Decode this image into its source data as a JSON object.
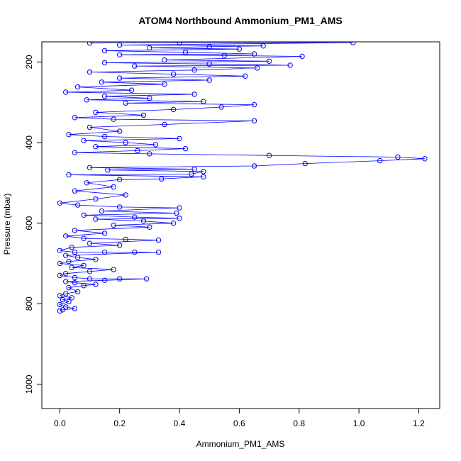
{
  "chart_data": {
    "type": "scatter",
    "title": "ATOM4 Northbound Ammonium_PM1_AMS",
    "xlabel": "Ammonium_PM1_AMS",
    "ylabel": "Pressure (mbar)",
    "xlim": [
      -0.06,
      1.27
    ],
    "ylim": [
      1060,
      150
    ],
    "y_reversed": true,
    "x_ticks": [
      0.0,
      0.2,
      0.4,
      0.6,
      0.8,
      1.0,
      1.2
    ],
    "x_tick_labels": [
      "0.0",
      "0.2",
      "0.4",
      "0.6",
      "0.8",
      "1.0",
      "1.2"
    ],
    "y_ticks": [
      200,
      400,
      600,
      800,
      1000
    ],
    "y_tick_labels": [
      "200",
      "400",
      "600",
      "800",
      "1000"
    ],
    "grid": false,
    "legend": "none",
    "connected": true,
    "series": [
      {
        "color": "#0000ff",
        "marker": "open-circle",
        "points": [
          [
            0.0,
            818
          ],
          [
            0.01,
            815
          ],
          [
            0.05,
            812
          ],
          [
            0.02,
            808
          ],
          [
            0.0,
            802
          ],
          [
            0.03,
            795
          ],
          [
            0.01,
            790
          ],
          [
            0.04,
            785
          ],
          [
            0.0,
            780
          ],
          [
            0.02,
            775
          ],
          [
            0.06,
            770
          ],
          [
            0.03,
            760
          ],
          [
            0.08,
            755
          ],
          [
            0.12,
            752
          ],
          [
            0.05,
            748
          ],
          [
            0.02,
            745
          ],
          [
            0.15,
            742
          ],
          [
            0.29,
            738
          ],
          [
            0.2,
            738
          ],
          [
            0.1,
            738
          ],
          [
            0.05,
            735
          ],
          [
            0.0,
            730
          ],
          [
            0.02,
            725
          ],
          [
            0.1,
            720
          ],
          [
            0.18,
            715
          ],
          [
            0.04,
            710
          ],
          [
            0.08,
            705
          ],
          [
            0.0,
            700
          ],
          [
            0.03,
            695
          ],
          [
            0.12,
            690
          ],
          [
            0.06,
            685
          ],
          [
            0.02,
            680
          ],
          [
            0.33,
            672
          ],
          [
            0.25,
            672
          ],
          [
            0.15,
            672
          ],
          [
            0.05,
            672
          ],
          [
            0.0,
            668
          ],
          [
            0.04,
            660
          ],
          [
            0.2,
            655
          ],
          [
            0.1,
            650
          ],
          [
            0.33,
            642
          ],
          [
            0.22,
            640
          ],
          [
            0.08,
            638
          ],
          [
            0.02,
            632
          ],
          [
            0.15,
            625
          ],
          [
            0.05,
            618
          ],
          [
            0.3,
            610
          ],
          [
            0.18,
            605
          ],
          [
            0.38,
            600
          ],
          [
            0.28,
            595
          ],
          [
            0.12,
            590
          ],
          [
            0.4,
            588
          ],
          [
            0.25,
            585
          ],
          [
            0.08,
            580
          ],
          [
            0.39,
            575
          ],
          [
            0.14,
            570
          ],
          [
            0.4,
            562
          ],
          [
            0.2,
            560
          ],
          [
            0.06,
            555
          ],
          [
            0.0,
            550
          ],
          [
            0.12,
            540
          ],
          [
            0.22,
            530
          ],
          [
            0.05,
            520
          ],
          [
            0.18,
            510
          ],
          [
            0.09,
            500
          ],
          [
            0.2,
            492
          ],
          [
            0.34,
            490
          ],
          [
            0.48,
            485
          ],
          [
            0.03,
            480
          ],
          [
            0.44,
            478
          ],
          [
            0.48,
            472
          ],
          [
            0.16,
            468
          ],
          [
            0.45,
            466
          ],
          [
            0.1,
            462
          ],
          [
            0.65,
            458
          ],
          [
            0.82,
            452
          ],
          [
            1.07,
            445
          ],
          [
            1.22,
            440
          ],
          [
            1.13,
            436
          ],
          [
            0.7,
            432
          ],
          [
            0.3,
            428
          ],
          [
            0.05,
            425
          ],
          [
            0.26,
            420
          ],
          [
            0.42,
            415
          ],
          [
            0.12,
            410
          ],
          [
            0.32,
            405
          ],
          [
            0.22,
            400
          ],
          [
            0.08,
            395
          ],
          [
            0.4,
            390
          ],
          [
            0.15,
            385
          ],
          [
            0.03,
            380
          ],
          [
            0.2,
            372
          ],
          [
            0.1,
            362
          ],
          [
            0.35,
            355
          ],
          [
            0.65,
            346
          ],
          [
            0.18,
            342
          ],
          [
            0.05,
            338
          ],
          [
            0.28,
            332
          ],
          [
            0.12,
            325
          ],
          [
            0.38,
            318
          ],
          [
            0.54,
            312
          ],
          [
            0.65,
            306
          ],
          [
            0.22,
            302
          ],
          [
            0.48,
            298
          ],
          [
            0.09,
            294
          ],
          [
            0.3,
            290
          ],
          [
            0.15,
            285
          ],
          [
            0.45,
            280
          ],
          [
            0.02,
            275
          ],
          [
            0.24,
            270
          ],
          [
            0.06,
            262
          ],
          [
            0.35,
            255
          ],
          [
            0.14,
            250
          ],
          [
            0.5,
            245
          ],
          [
            0.2,
            240
          ],
          [
            0.62,
            235
          ],
          [
            0.38,
            230
          ],
          [
            0.1,
            225
          ],
          [
            0.45,
            220
          ],
          [
            0.66,
            215
          ],
          [
            0.25,
            210
          ],
          [
            0.77,
            208
          ],
          [
            0.5,
            205
          ],
          [
            0.15,
            202
          ],
          [
            0.7,
            198
          ],
          [
            0.35,
            195
          ],
          [
            0.81,
            186
          ],
          [
            0.55,
            184
          ],
          [
            0.2,
            182
          ],
          [
            0.65,
            180
          ],
          [
            0.42,
            176
          ],
          [
            0.15,
            172
          ],
          [
            0.6,
            168
          ],
          [
            0.3,
            165
          ],
          [
            0.5,
            162
          ],
          [
            0.68,
            160
          ],
          [
            0.2,
            158
          ],
          [
            0.98,
            152
          ],
          [
            0.4,
            152
          ],
          [
            0.1,
            153
          ]
        ]
      }
    ]
  }
}
